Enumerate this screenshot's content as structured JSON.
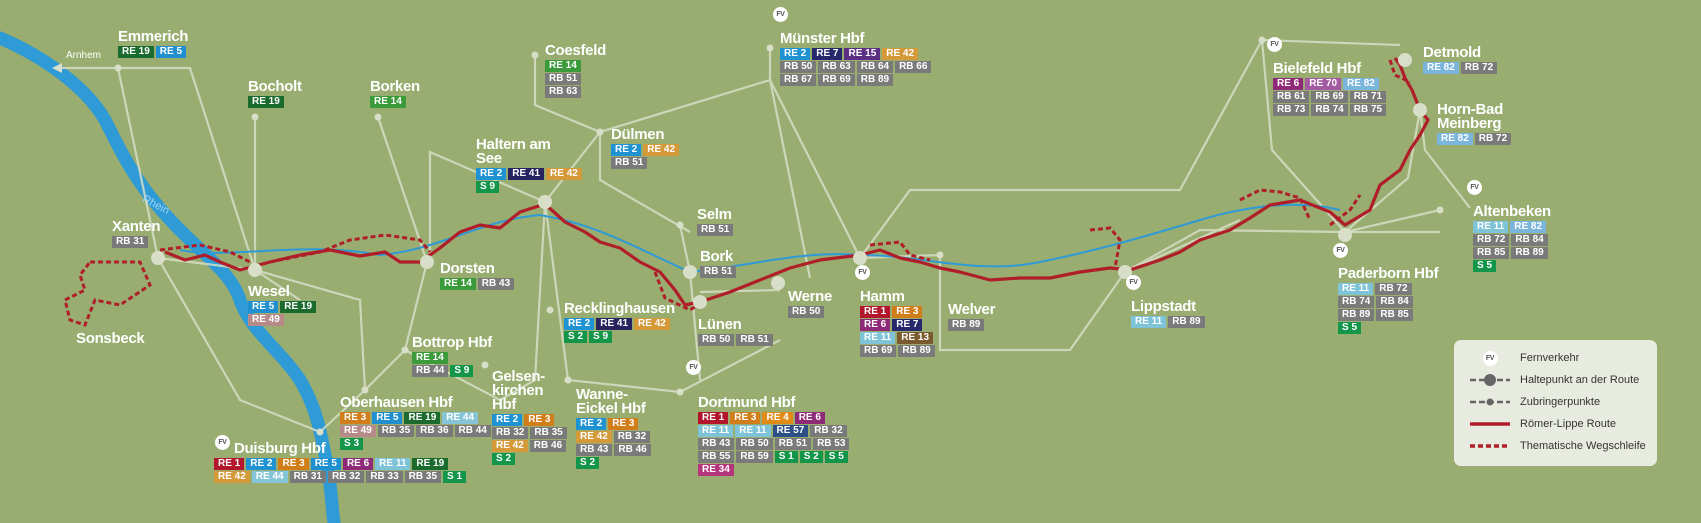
{
  "colors": {
    "RE 1": "#b3152d",
    "RE 2": "#1f93d2",
    "RE 3": "#d07d1a",
    "RE 4": "#e08a18",
    "RE 5": "#1f8fd0",
    "RE 6": "#8e2a78",
    "RE 7": "#27286b",
    "RE 11": "#7fc3d9",
    "RE 13": "#7a5a2e",
    "RE 14": "#3b9a3a",
    "RE 15": "#5b2f82",
    "RE 19": "#1b6b2f",
    "RE 34": "#b5367c",
    "RE 41": "#26235f",
    "RE 42": "#d49a3a",
    "RE 44": "#86c4d8",
    "RE 49": "#b78a8a",
    "RE 57": "#2c4f86",
    "RE 70": "#a45aa2",
    "RE 82": "#7ab5dc",
    "RB": "#7a7a7a",
    "S": "#13954a",
    "river": "#2e9ad6",
    "route": "#b01e2a",
    "feeder": "#d8dec8",
    "bg": "#98ad6f"
  },
  "cities": [
    {
      "id": "emmerich",
      "name": "Emmerich",
      "lines": [
        [
          "RE 19",
          "RE 5"
        ]
      ]
    },
    {
      "id": "bocholt",
      "name": "Bocholt",
      "lines": [
        [
          "RE 19"
        ]
      ]
    },
    {
      "id": "borken",
      "name": "Borken",
      "lines": [
        [
          "RE 14"
        ]
      ]
    },
    {
      "id": "coesfeld",
      "name": "Coesfeld",
      "lines": [
        [
          "RE 14"
        ],
        [
          "RB 51"
        ],
        [
          "RB 63"
        ]
      ]
    },
    {
      "id": "muenster",
      "name": "Münster Hbf",
      "fv": true,
      "lines": [
        [
          "RE 2",
          "RE 7",
          "RE 15",
          "RE 42"
        ],
        [
          "RB 50",
          "RB 63",
          "RB 64",
          "RB 66"
        ],
        [
          "RB 67",
          "RB 69",
          "RB 89"
        ]
      ]
    },
    {
      "id": "haltern",
      "name": "Haltern am See",
      "lines": [
        [
          "RE 2",
          "RE 41",
          "RE 42"
        ],
        [
          "S 9"
        ]
      ]
    },
    {
      "id": "duelmen",
      "name": "Dülmen",
      "lines": [
        [
          "RE 2",
          "RE 42"
        ],
        [
          "RB 51"
        ]
      ]
    },
    {
      "id": "selm",
      "name": "Selm",
      "lines": [
        [
          "RB 51"
        ]
      ]
    },
    {
      "id": "bork",
      "name": "Bork",
      "lines": [
        [
          "RB 51"
        ]
      ]
    },
    {
      "id": "xanten",
      "name": "Xanten",
      "lines": [
        [
          "RB 31"
        ]
      ]
    },
    {
      "id": "sonsbeck",
      "name": "Sonsbeck",
      "lines": []
    },
    {
      "id": "wesel",
      "name": "Wesel",
      "lines": [
        [
          "RE 5",
          "RE 19"
        ],
        [
          "RE 49"
        ]
      ]
    },
    {
      "id": "dorsten",
      "name": "Dorsten",
      "lines": [
        [
          "RE 14",
          "RB 43"
        ]
      ]
    },
    {
      "id": "recklinghausen",
      "name": "Recklinghausen",
      "lines": [
        [
          "RE 2",
          "RE 41",
          "RE 42"
        ],
        [
          "S 2",
          "S 9"
        ]
      ]
    },
    {
      "id": "luenen",
      "name": "Lünen",
      "lines": [
        [
          "RB 50",
          "RB 51"
        ]
      ]
    },
    {
      "id": "werne",
      "name": "Werne",
      "lines": [
        [
          "RB 50"
        ]
      ]
    },
    {
      "id": "hamm",
      "name": "Hamm",
      "fv": true,
      "lines": [
        [
          "RE 1",
          "RE 3"
        ],
        [
          "RE 6",
          "RE 7"
        ],
        [
          "RE 11",
          "RE 13"
        ],
        [
          "RB 69",
          "RB 89"
        ]
      ]
    },
    {
      "id": "welver",
      "name": "Welver",
      "lines": [
        [
          "RB 89"
        ]
      ]
    },
    {
      "id": "bottrop",
      "name": "Bottrop Hbf",
      "lines": [
        [
          "RE 14"
        ],
        [
          "RB 44",
          "S 9"
        ]
      ]
    },
    {
      "id": "oberhausen",
      "name": "Oberhausen Hbf",
      "lines": [
        [
          "RE 3",
          "RE 5",
          "RE 19",
          "RE 44"
        ],
        [
          "RE 49",
          "RB 35",
          "RB 36",
          "RB 44"
        ],
        [
          "S 3"
        ]
      ]
    },
    {
      "id": "gelsenkirchen",
      "name": "Gelsen-kirchen Hbf",
      "lines": [
        [
          "RE 2",
          "RE 3"
        ],
        [
          "RB 32",
          "RB 35"
        ],
        [
          "RE 42",
          "RB 46"
        ],
        [
          "S 2"
        ]
      ]
    },
    {
      "id": "wanne",
      "name": "Wanne-Eickel Hbf",
      "lines": [
        [
          "RE 2",
          "RE 3"
        ],
        [
          "RE 42",
          "RB 32"
        ],
        [
          "RB 43",
          "RB 46"
        ],
        [
          "S 2"
        ]
      ]
    },
    {
      "id": "dortmund",
      "name": "Dortmund Hbf",
      "fv": true,
      "lines": [
        [
          "RE 1",
          "RE 3",
          "RE 4",
          "RE 6"
        ],
        [
          "RE 11",
          "RE 11",
          "RE 57",
          "RB 32"
        ],
        [
          "RB 43",
          "RB 50",
          "RB 51",
          "RB 53"
        ],
        [
          "RB 55",
          "RB 59",
          "S 1",
          "S 2",
          "S 5"
        ],
        [
          "RE 34"
        ]
      ]
    },
    {
      "id": "duisburg",
      "name": "Duisburg Hbf",
      "fv": true,
      "lines": [
        [
          "RE 1",
          "RE 2",
          "RE 3",
          "RE 5",
          "RE 6",
          "RE 11",
          "RE 19"
        ],
        [
          "RE 42",
          "RE 44",
          "RB 31",
          "RB 32",
          "RB 33",
          "RB 35",
          "S 1"
        ]
      ]
    },
    {
      "id": "lippstadt",
      "name": "Lippstadt",
      "fv": true,
      "lines": [
        [
          "RE 11",
          "RB 89"
        ]
      ]
    },
    {
      "id": "bielefeld",
      "name": "Bielefeld Hbf",
      "fv": true,
      "lines": [
        [
          "RE 6",
          "RE 70",
          "RE 82"
        ],
        [
          "RB 61",
          "RB 69",
          "RB 71"
        ],
        [
          "RB 73",
          "RB 74",
          "RB 75"
        ]
      ]
    },
    {
      "id": "detmold",
      "name": "Detmold",
      "lines": [
        [
          "RE 82",
          "RB 72"
        ]
      ]
    },
    {
      "id": "hornbad",
      "name": "Horn-Bad Meinberg",
      "lines": [
        [
          "RE 82",
          "RB 72"
        ]
      ]
    },
    {
      "id": "altenbeken",
      "name": "Altenbeken",
      "fv": true,
      "lines": [
        [
          "RE 11",
          "RE 82"
        ],
        [
          "RB 72",
          "RB 84"
        ],
        [
          "RB 85",
          "RB 89"
        ],
        [
          "S 5"
        ]
      ]
    },
    {
      "id": "paderborn",
      "name": "Paderborn Hbf",
      "fv": true,
      "lines": [
        [
          "RE 11",
          "RB 72"
        ],
        [
          "RB 74",
          "RB 84"
        ],
        [
          "RB 89",
          "RB 85"
        ],
        [
          "S 5"
        ]
      ]
    }
  ],
  "labels": {
    "arnhem": "Arnhem",
    "rhein": "Rhein",
    "fv": "FV"
  },
  "legend": {
    "items": [
      {
        "symbol": "fv",
        "label": "Fernverkehr"
      },
      {
        "symbol": "stop",
        "label": "Haltepunkt an der Route"
      },
      {
        "symbol": "feeder",
        "label": "Zubringerpunkte"
      },
      {
        "symbol": "route",
        "label": "Römer-Lippe Route"
      },
      {
        "symbol": "loop",
        "label": "Thematische Wegschleife"
      }
    ]
  }
}
